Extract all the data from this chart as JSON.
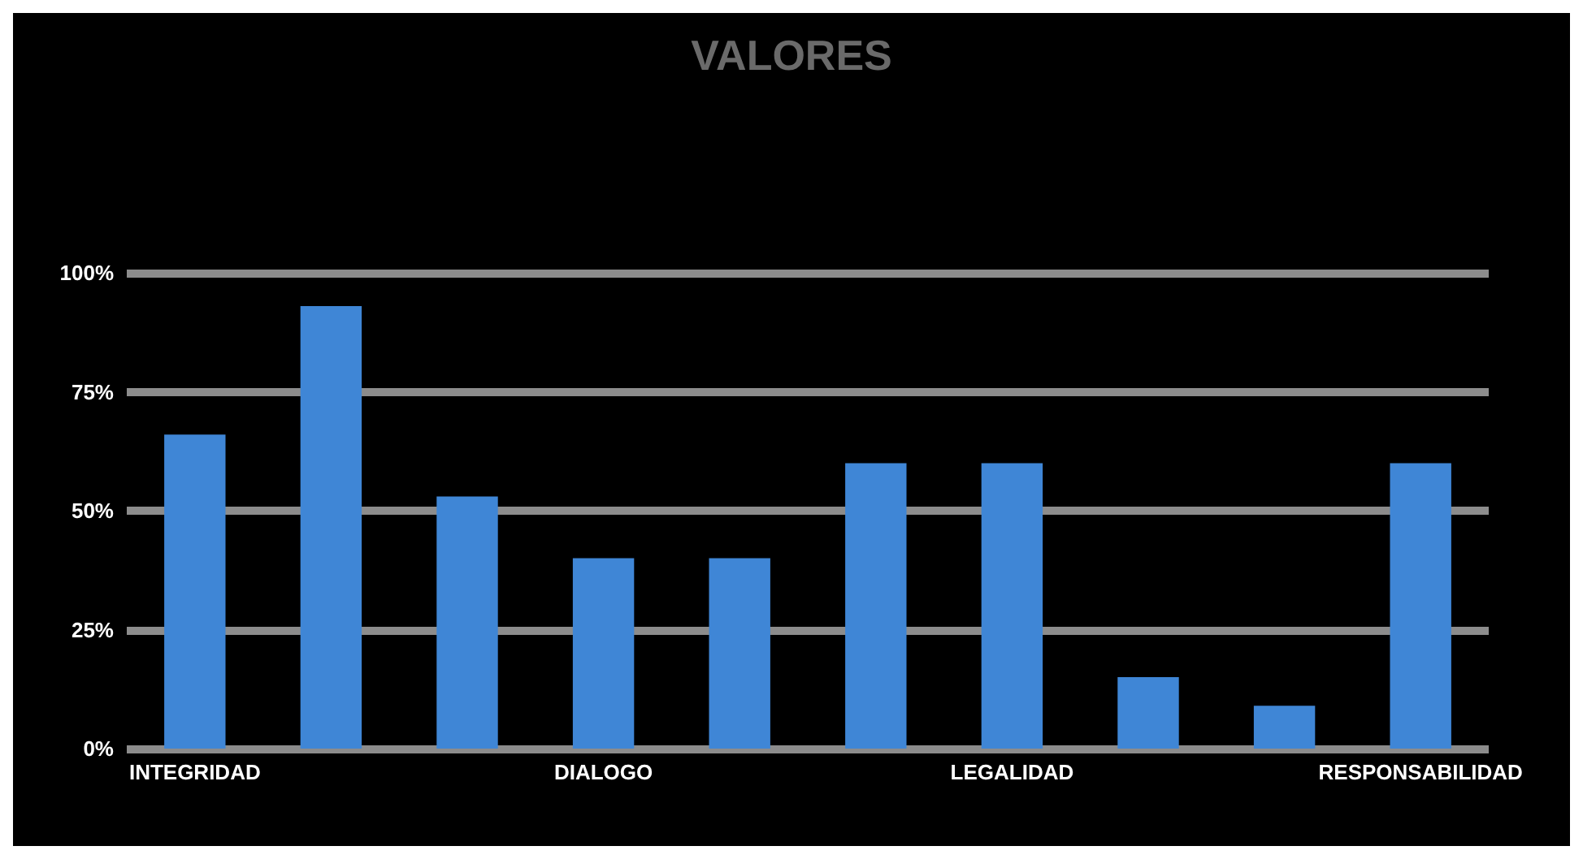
{
  "chart_data": {
    "type": "bar",
    "title": "VALORES",
    "categories": [
      "INTEGRIDAD",
      null,
      null,
      "DIALOGO",
      null,
      null,
      "LEGALIDAD",
      null,
      null,
      "RESPONSABILIDAD"
    ],
    "values": [
      66,
      93,
      53,
      40,
      40,
      60,
      60,
      15,
      9,
      60
    ],
    "color": "#3f86d6",
    "ylim": [
      0,
      100
    ],
    "yticks": [
      {
        "value": 0,
        "label": "0%"
      },
      {
        "value": 25,
        "label": "25%"
      },
      {
        "value": 50,
        "label": "50%"
      },
      {
        "value": 75,
        "label": "75%"
      },
      {
        "value": 100,
        "label": "100%"
      }
    ],
    "grid": "y"
  }
}
